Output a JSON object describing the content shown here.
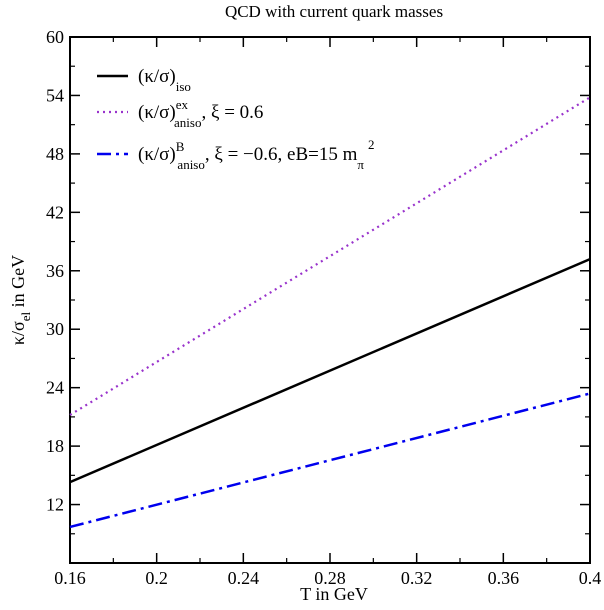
{
  "chart_data": {
    "type": "line",
    "title": "QCD with current quark masses",
    "xlabel": "T in GeV",
    "ylabel": {
      "base": "κ/σ",
      "sub": "el",
      "suffix": " in GeV"
    },
    "xlim": [
      0.16,
      0.4
    ],
    "ylim": [
      6,
      60
    ],
    "xticks": [
      "0.16",
      "0.2",
      "0.24",
      "0.28",
      "0.32",
      "0.36",
      "0.4"
    ],
    "yticks": [
      "12",
      "18",
      "24",
      "30",
      "36",
      "42",
      "48",
      "54",
      "60"
    ],
    "grid": false,
    "legend_position": "top-left",
    "series": [
      {
        "name": "(κ/σ)iso",
        "legend": {
          "main": "(κ/σ)",
          "sup": "",
          "sub": "iso",
          "tail": ""
        },
        "color": "#000000",
        "style": "solid",
        "x": [
          0.16,
          0.4
        ],
        "y": [
          14.3,
          37.2
        ]
      },
      {
        "name": "(κ/σ)ex aniso, ξ = 0.6",
        "legend": {
          "main": "(κ/σ)",
          "sup": "ex",
          "sub": "aniso",
          "tail": ", ξ = 0.6"
        },
        "color": "#9933cc",
        "style": "dotted",
        "x": [
          0.16,
          0.4
        ],
        "y": [
          21.2,
          53.8
        ]
      },
      {
        "name": "(κ/σ)B aniso, ξ = −0.6, eB=15 mπ2",
        "legend": {
          "main": "(κ/σ)",
          "sup": "B",
          "sub": "aniso",
          "tail": ", ξ = −0.6, eB=15 m",
          "tail_sub": "π",
          "tail_sup": "2"
        },
        "color": "#0000ee",
        "style": "dashdot",
        "x": [
          0.16,
          0.4
        ],
        "y": [
          9.7,
          23.4
        ]
      }
    ]
  }
}
